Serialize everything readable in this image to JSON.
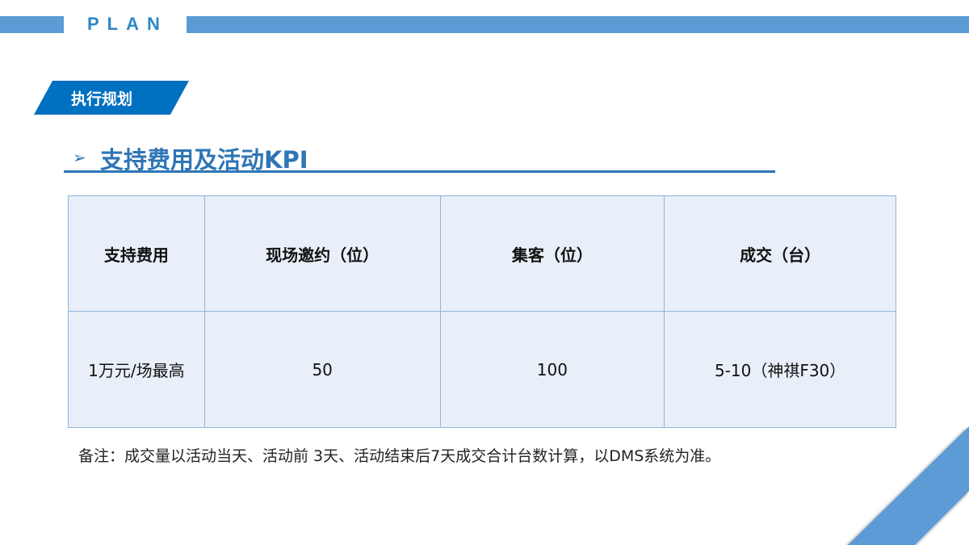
{
  "header": {
    "label": "PLAN"
  },
  "section_tag": "执行规划",
  "heading": {
    "bullet": "➢",
    "title": "支持费用及活动KPI"
  },
  "table": {
    "headers": [
      "支持费用",
      "现场邀约（位）",
      "集客（位）",
      "成交（台）"
    ],
    "rows": [
      [
        "1万元/场最高",
        "50",
        "100",
        "5-10（神祺F30）"
      ]
    ]
  },
  "note": "备注：成交量以活动当天、活动前 3天、活动结束后7天成交合计台数计算，以DMS系统为准。",
  "colors": {
    "accent": "#5b9bd5",
    "tag": "#0070c0",
    "heading": "#2e75b6",
    "table_fill": "#e9eff8"
  }
}
